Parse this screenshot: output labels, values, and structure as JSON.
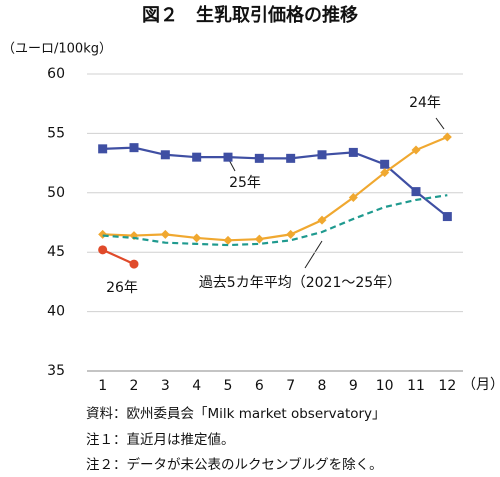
{
  "chart_data": {
    "type": "line",
    "title": "図２　生乳取引価格の推移",
    "y_label": "（ユーロ/100kg）",
    "x_unit": "（月）",
    "categories": [
      "1",
      "2",
      "3",
      "4",
      "5",
      "6",
      "7",
      "8",
      "9",
      "10",
      "11",
      "12"
    ],
    "ylim": [
      35,
      60
    ],
    "yticks": [
      35,
      40,
      45,
      50,
      55,
      60
    ],
    "grid": true,
    "series": [
      {
        "name": "25年",
        "color": "#3f4fa3",
        "marker": "square",
        "values": [
          53.7,
          53.8,
          53.2,
          53.0,
          53.0,
          52.9,
          52.9,
          53.2,
          53.4,
          52.4,
          50.1,
          48.0
        ]
      },
      {
        "name": "24年",
        "color": "#f0a830",
        "marker": "diamond",
        "values": [
          46.5,
          46.4,
          46.5,
          46.2,
          46.0,
          46.1,
          46.5,
          47.7,
          49.6,
          51.7,
          53.6,
          54.7
        ]
      },
      {
        "name": "過去5カ年平均（2021～25年）",
        "color": "#1f9a8f",
        "dash": true,
        "values": [
          46.4,
          46.2,
          45.8,
          45.7,
          45.6,
          45.7,
          46.0,
          46.7,
          47.8,
          48.8,
          49.4,
          49.8
        ]
      },
      {
        "name": "26年",
        "color": "#e04a2a",
        "marker": "circle",
        "values": [
          45.2,
          44.0,
          null,
          null,
          null,
          null,
          null,
          null,
          null,
          null,
          null,
          null
        ]
      }
    ],
    "notes": [
      "資料：欧州委員会「Milk market observatory」",
      "注１：直近月は推定値。",
      "注２：データが未公表のルクセンブルグを除く。"
    ]
  }
}
